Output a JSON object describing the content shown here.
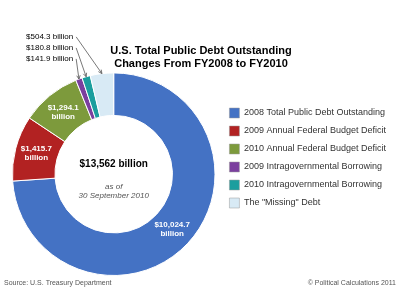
{
  "chart_data": {
    "type": "doughnut",
    "title": "U.S. Total Public Debt Outstanding",
    "subtitle": "Changes From FY2008 to FY2010",
    "categories": [
      "2008 Total Public Debt Outstanding",
      "2009 Annual Federal Budget Deficit",
      "2010 Annual Federal Budget Deficit",
      "2009 Intragovernmental Borrowing",
      "2010 Intragovernmental Borrowing",
      "The \"Missing\" Debt"
    ],
    "values": [
      10024.7,
      1415.7,
      1294.1,
      141.9,
      180.8,
      504.3
    ],
    "colors": [
      "#4472C4",
      "#B22222",
      "#7D9A3C",
      "#7B3F9E",
      "#1B9E9E",
      "#D8EAF5"
    ],
    "value_labels": [
      "$10,024.7\nbillion",
      "$1,415.7\nbillion",
      "$1,294.1\nbillion",
      "$141.9 billion",
      "$180.8 billion",
      "$504.3 billion"
    ],
    "data_labels": true,
    "legend": "right",
    "annotations": [
      "$13,562 billion",
      "as of\n30 September 2010",
      "Source: U.S. Treasury Department",
      "© Political Calculations 2011"
    ]
  }
}
